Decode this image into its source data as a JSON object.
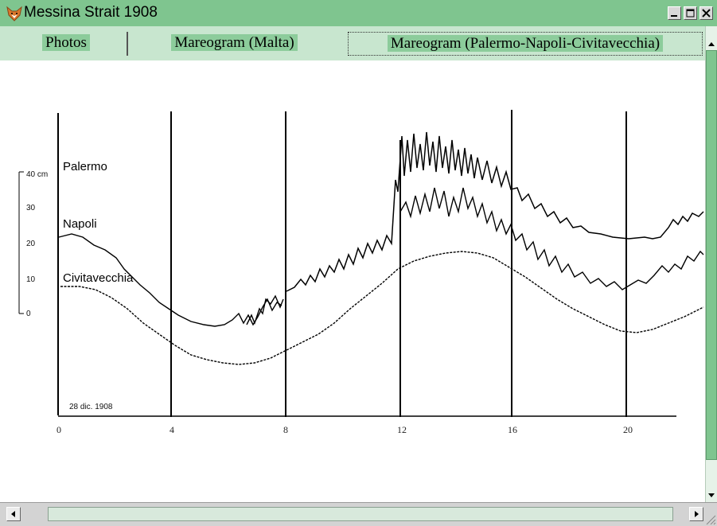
{
  "window": {
    "title": "Messina Strait 1908",
    "icon": "fox-icon"
  },
  "window_controls": {
    "minimize": "minimize-icon",
    "maximize": "maximize-icon",
    "close": "close-icon"
  },
  "tabs": [
    {
      "label": "Photos"
    },
    {
      "label": "Mareogram (Malta)"
    },
    {
      "label": "Mareogram (Palermo-Napoli-Civitavecchia)",
      "selected": true
    }
  ],
  "mareogram": {
    "stations": [
      "Palermo",
      "Napoli",
      "Civitavecchia"
    ],
    "date": "28 dic. 1908",
    "hour_ticks": [
      "0",
      "4",
      "8",
      "12",
      "16",
      "20"
    ],
    "scale_labels": [
      "40 cm",
      "30",
      "20",
      "10",
      "0"
    ]
  },
  "colors": {
    "titlebar": "#7fc58f",
    "tabbar": "#c8e6cf",
    "accent": "#8ccc9b"
  }
}
